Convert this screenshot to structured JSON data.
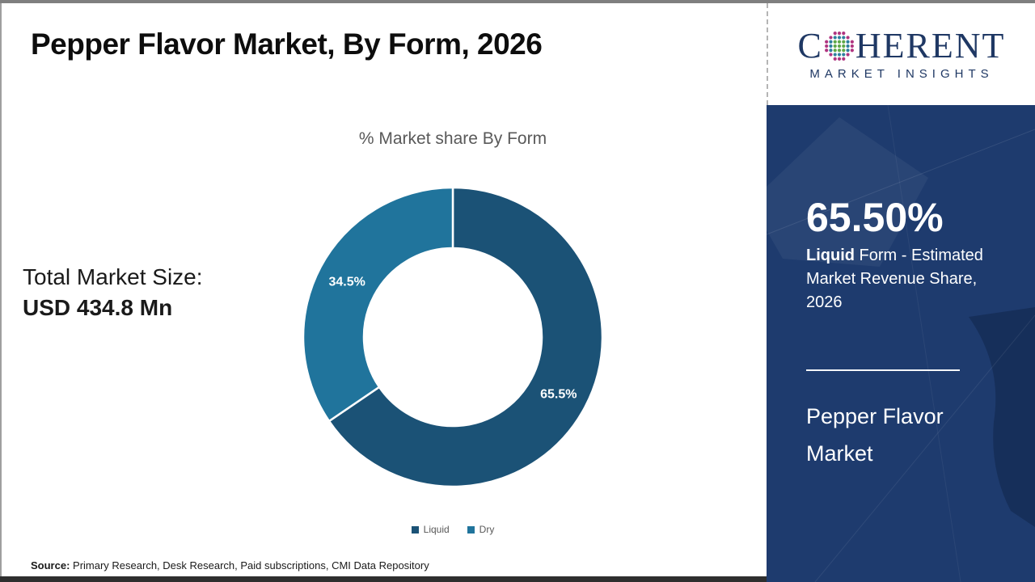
{
  "page": {
    "title": "Pepper Flavor Market, By Form, 2026"
  },
  "logo": {
    "word_start": "C",
    "word_end": "HERENT",
    "tagline": "MARKET INSIGHTS",
    "text_color": "#1f3864",
    "globe_icon_colors": {
      "inner": "#5fa848",
      "mid": "#2e7f9f",
      "outer": "#b03580"
    }
  },
  "total_market": {
    "label": "Total Market Size:",
    "value": "USD 434.8 Mn"
  },
  "chart_data": {
    "type": "pie",
    "donut": true,
    "title": "% Market share By Form",
    "categories": [
      "Liquid",
      "Dry"
    ],
    "values": [
      65.5,
      34.5
    ],
    "slice_labels": [
      "65.5%",
      "34.5%"
    ],
    "colors": [
      "#1b5276",
      "#20749c"
    ],
    "start_angle_deg": 0,
    "direction": "clockwise",
    "legend_position": "bottom"
  },
  "sidebar": {
    "stat_value": "65.50%",
    "stat_desc_bold": "Liquid",
    "stat_desc_rest": " Form - Estimated Market Revenue Share, 2026",
    "market_name": "Pepper Flavor Market",
    "bg_color": "#1e3b6e"
  },
  "footer": {
    "source_label": "Source:",
    "source_text": " Primary Research, Desk Research, Paid subscriptions, CMI Data Repository"
  }
}
